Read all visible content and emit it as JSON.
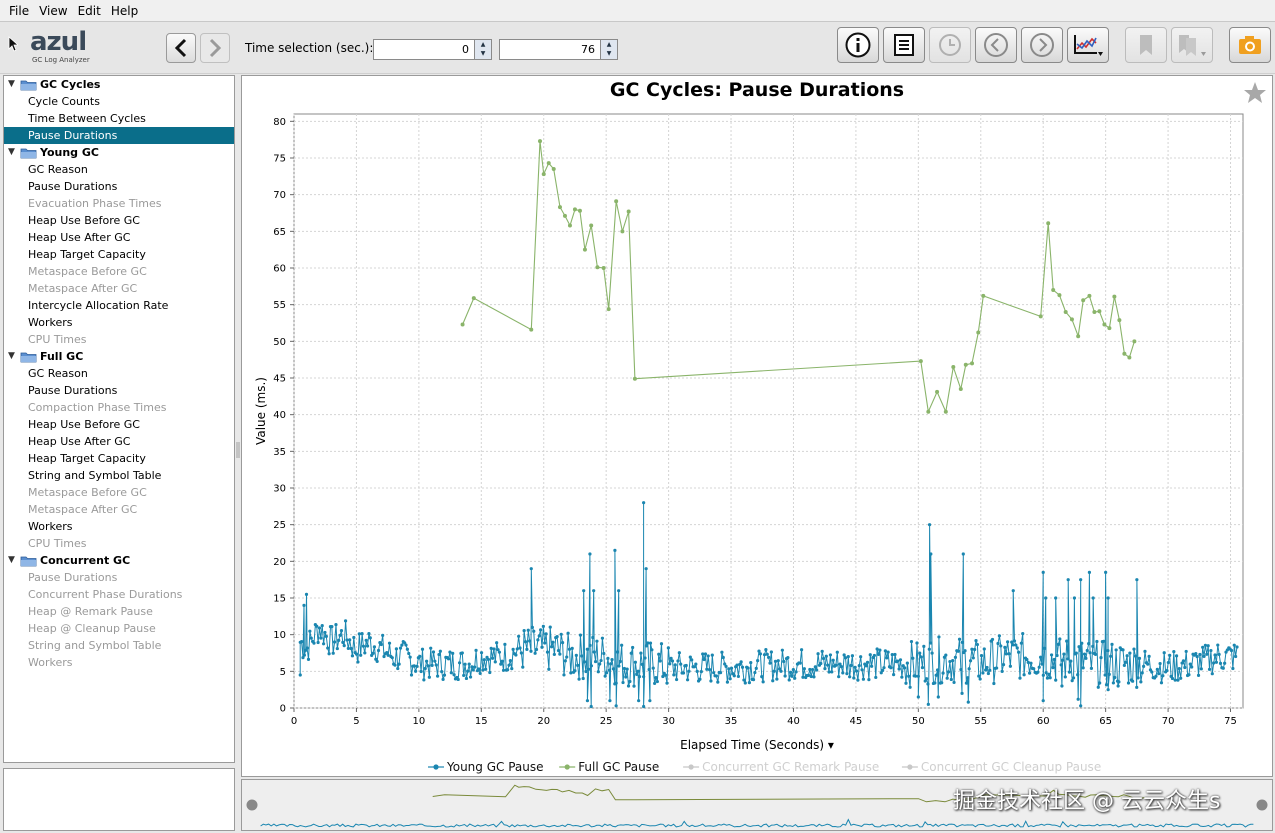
{
  "menu": [
    "File",
    "View",
    "Edit",
    "Help"
  ],
  "logo": {
    "word": "azul",
    "sub": "GC Log Analyzer"
  },
  "time_selection": {
    "label": "Time selection (sec.):",
    "start": "0",
    "end": "76"
  },
  "icons": {
    "back": "chevron-left-icon",
    "forward": "chevron-right-icon",
    "toolbar": [
      "info-icon",
      "notes-icon",
      "clock-icon",
      "circle-left-icon",
      "circle-right-icon",
      "chart-options-icon",
      "bookmark-icon",
      "bookmarks-icon",
      "camera-icon"
    ]
  },
  "tree": [
    {
      "label": "GC Cycles",
      "items": [
        {
          "label": "Cycle Counts",
          "state": "normal"
        },
        {
          "label": "Time Between Cycles",
          "state": "normal"
        },
        {
          "label": "Pause Durations",
          "state": "selected"
        }
      ]
    },
    {
      "label": "Young GC",
      "items": [
        {
          "label": "GC Reason",
          "state": "normal"
        },
        {
          "label": "Pause Durations",
          "state": "normal"
        },
        {
          "label": "Evacuation Phase Times",
          "state": "disabled"
        },
        {
          "label": "Heap Use Before GC",
          "state": "normal"
        },
        {
          "label": "Heap Use After GC",
          "state": "normal"
        },
        {
          "label": "Heap Target Capacity",
          "state": "normal"
        },
        {
          "label": "Metaspace Before GC",
          "state": "disabled"
        },
        {
          "label": "Metaspace After GC",
          "state": "disabled"
        },
        {
          "label": "Intercycle Allocation Rate",
          "state": "normal"
        },
        {
          "label": "Workers",
          "state": "normal"
        },
        {
          "label": "CPU Times",
          "state": "disabled"
        }
      ]
    },
    {
      "label": "Full GC",
      "items": [
        {
          "label": "GC Reason",
          "state": "normal"
        },
        {
          "label": "Pause Durations",
          "state": "normal"
        },
        {
          "label": "Compaction Phase Times",
          "state": "disabled"
        },
        {
          "label": "Heap Use Before GC",
          "state": "normal"
        },
        {
          "label": "Heap Use After GC",
          "state": "normal"
        },
        {
          "label": "Heap Target Capacity",
          "state": "normal"
        },
        {
          "label": "String and Symbol Table",
          "state": "normal"
        },
        {
          "label": "Metaspace Before GC",
          "state": "disabled"
        },
        {
          "label": "Metaspace After GC",
          "state": "disabled"
        },
        {
          "label": "Workers",
          "state": "normal"
        },
        {
          "label": "CPU Times",
          "state": "disabled"
        }
      ]
    },
    {
      "label": "Concurrent GC",
      "items": [
        {
          "label": "Pause Durations",
          "state": "disabled"
        },
        {
          "label": "Concurrent Phase Durations",
          "state": "disabled"
        },
        {
          "label": "Heap @ Remark Pause",
          "state": "disabled"
        },
        {
          "label": "Heap @ Cleanup Pause",
          "state": "disabled"
        },
        {
          "label": "String and Symbol Table",
          "state": "disabled"
        },
        {
          "label": "Workers",
          "state": "disabled"
        }
      ]
    }
  ],
  "colors": {
    "young": "#1a86b0",
    "full": "#8ab46a",
    "selection": "#0a6e8a",
    "disabled_legend": "#c8c8c8"
  },
  "chart_data": {
    "type": "line",
    "title": "GC Cycles: Pause Durations",
    "xlabel": "Elapsed Time (Seconds) ▾",
    "ylabel": "Value (ms.)",
    "xlim": [
      0,
      76
    ],
    "ylim": [
      0,
      81
    ],
    "xticks": [
      0,
      5,
      10,
      15,
      20,
      25,
      30,
      35,
      40,
      45,
      50,
      55,
      60,
      65,
      70,
      75
    ],
    "yticks": [
      0,
      5,
      10,
      15,
      20,
      25,
      30,
      35,
      40,
      45,
      50,
      55,
      60,
      65,
      70,
      75,
      80
    ],
    "grid": true,
    "legend_position": "bottom",
    "series": [
      {
        "name": "Young GC Pause",
        "enabled": true,
        "baseline": [
          [
            0.5,
            9
          ],
          [
            1,
            8
          ],
          [
            2,
            11
          ],
          [
            3,
            9
          ],
          [
            4,
            10
          ],
          [
            5,
            8
          ],
          [
            6,
            9
          ],
          [
            7,
            8
          ],
          [
            8,
            7
          ],
          [
            9,
            7
          ],
          [
            10,
            6
          ],
          [
            11,
            6
          ],
          [
            12,
            6
          ],
          [
            13,
            6
          ],
          [
            14,
            6
          ],
          [
            15,
            7
          ],
          [
            16,
            7
          ],
          [
            17,
            7
          ],
          [
            18,
            8
          ],
          [
            19,
            8
          ],
          [
            20,
            8
          ],
          [
            21,
            8
          ],
          [
            22,
            7
          ],
          [
            23,
            7
          ],
          [
            24,
            7
          ],
          [
            25,
            7
          ],
          [
            26,
            6
          ],
          [
            27,
            6
          ],
          [
            28,
            6
          ],
          [
            29,
            6
          ],
          [
            30,
            5.5
          ],
          [
            35,
            5.5
          ],
          [
            40,
            6
          ],
          [
            45,
            6
          ],
          [
            49,
            6
          ],
          [
            50,
            6
          ],
          [
            51,
            6.5
          ],
          [
            52,
            6.5
          ],
          [
            53,
            6.5
          ],
          [
            54,
            6.5
          ],
          [
            55,
            6
          ],
          [
            56,
            6.5
          ],
          [
            57,
            7
          ],
          [
            58,
            7
          ],
          [
            59,
            7
          ],
          [
            60,
            7
          ],
          [
            61,
            6.5
          ],
          [
            62,
            6.5
          ],
          [
            63,
            6.5
          ],
          [
            64,
            6
          ],
          [
            65,
            6
          ],
          [
            66,
            6
          ],
          [
            67,
            6
          ],
          [
            68,
            6
          ],
          [
            70,
            5.5
          ],
          [
            72,
            6
          ],
          [
            74,
            7
          ],
          [
            75.6,
            7
          ]
        ],
        "spikes": [
          [
            0.8,
            14
          ],
          [
            1,
            15.5
          ],
          [
            19,
            19
          ],
          [
            23.2,
            16
          ],
          [
            23.7,
            21
          ],
          [
            24,
            16
          ],
          [
            25.7,
            21.5
          ],
          [
            26,
            16
          ],
          [
            28,
            28
          ],
          [
            28.2,
            19
          ],
          [
            50.9,
            25
          ],
          [
            51,
            21
          ],
          [
            53.6,
            21
          ],
          [
            57.6,
            16
          ],
          [
            60,
            18.5
          ],
          [
            60.2,
            15
          ],
          [
            61,
            15
          ],
          [
            62,
            17.5
          ],
          [
            62.5,
            15
          ],
          [
            63,
            17.5
          ],
          [
            63.7,
            18.5
          ],
          [
            64,
            15
          ],
          [
            65,
            18.5
          ],
          [
            65.2,
            15
          ],
          [
            67.5,
            17.5
          ]
        ],
        "dips": [
          [
            0.5,
            4.5
          ],
          [
            23.5,
            1
          ],
          [
            23.8,
            0.2
          ],
          [
            25.3,
            1
          ],
          [
            25.8,
            0.3
          ],
          [
            27.6,
            1
          ],
          [
            28,
            0.2
          ],
          [
            28.5,
            1
          ],
          [
            50,
            1.5
          ],
          [
            50.8,
            0.5
          ],
          [
            51.6,
            1.5
          ],
          [
            53.5,
            2
          ],
          [
            54,
            0.8
          ],
          [
            60,
            1
          ],
          [
            61.5,
            3
          ],
          [
            62.8,
            1.2
          ],
          [
            63,
            0.3
          ],
          [
            65.2,
            2.5
          ],
          [
            66,
            3
          ]
        ]
      },
      {
        "name": "Full GC Pause",
        "enabled": true,
        "points": [
          [
            13.5,
            52.3
          ],
          [
            14.4,
            55.9
          ],
          [
            19,
            51.6
          ],
          [
            19.7,
            77.3
          ],
          [
            20,
            72.8
          ],
          [
            20.4,
            74.3
          ],
          [
            20.8,
            73.5
          ],
          [
            21.3,
            68.3
          ],
          [
            21.7,
            67.1
          ],
          [
            22.1,
            65.8
          ],
          [
            22.5,
            68
          ],
          [
            22.9,
            67.8
          ],
          [
            23.3,
            62.5
          ],
          [
            23.8,
            65.8
          ],
          [
            24.3,
            60.1
          ],
          [
            24.8,
            60
          ],
          [
            25.2,
            54.4
          ],
          [
            25.8,
            69.1
          ],
          [
            26.3,
            65
          ],
          [
            26.8,
            67.7
          ],
          [
            27.3,
            44.9
          ],
          [
            50.2,
            47.3
          ],
          [
            50.8,
            40.4
          ],
          [
            51.5,
            43.1
          ],
          [
            52.2,
            40.4
          ],
          [
            52.8,
            46.5
          ],
          [
            53.4,
            43.5
          ],
          [
            53.8,
            46.8
          ],
          [
            54.3,
            47
          ],
          [
            54.8,
            51.2
          ],
          [
            55.2,
            56.2
          ],
          [
            59.8,
            53.4
          ],
          [
            60.4,
            66.1
          ],
          [
            60.8,
            57
          ],
          [
            61.3,
            56.3
          ],
          [
            61.8,
            54
          ],
          [
            62.3,
            53
          ],
          [
            62.8,
            50.7
          ],
          [
            63.2,
            55.6
          ],
          [
            63.7,
            56.2
          ],
          [
            64.1,
            54
          ],
          [
            64.5,
            54.1
          ],
          [
            64.9,
            52.3
          ],
          [
            65.3,
            51.8
          ],
          [
            65.7,
            56.1
          ],
          [
            66.1,
            52.9
          ],
          [
            66.5,
            48.3
          ],
          [
            66.9,
            47.8
          ],
          [
            67.3,
            50
          ]
        ]
      },
      {
        "name": "Concurrent GC Remark Pause",
        "enabled": false,
        "points": []
      },
      {
        "name": "Concurrent GC Cleanup Pause",
        "enabled": false,
        "points": []
      }
    ]
  },
  "watermark": "掘金技术社区 @ 云云众生s"
}
